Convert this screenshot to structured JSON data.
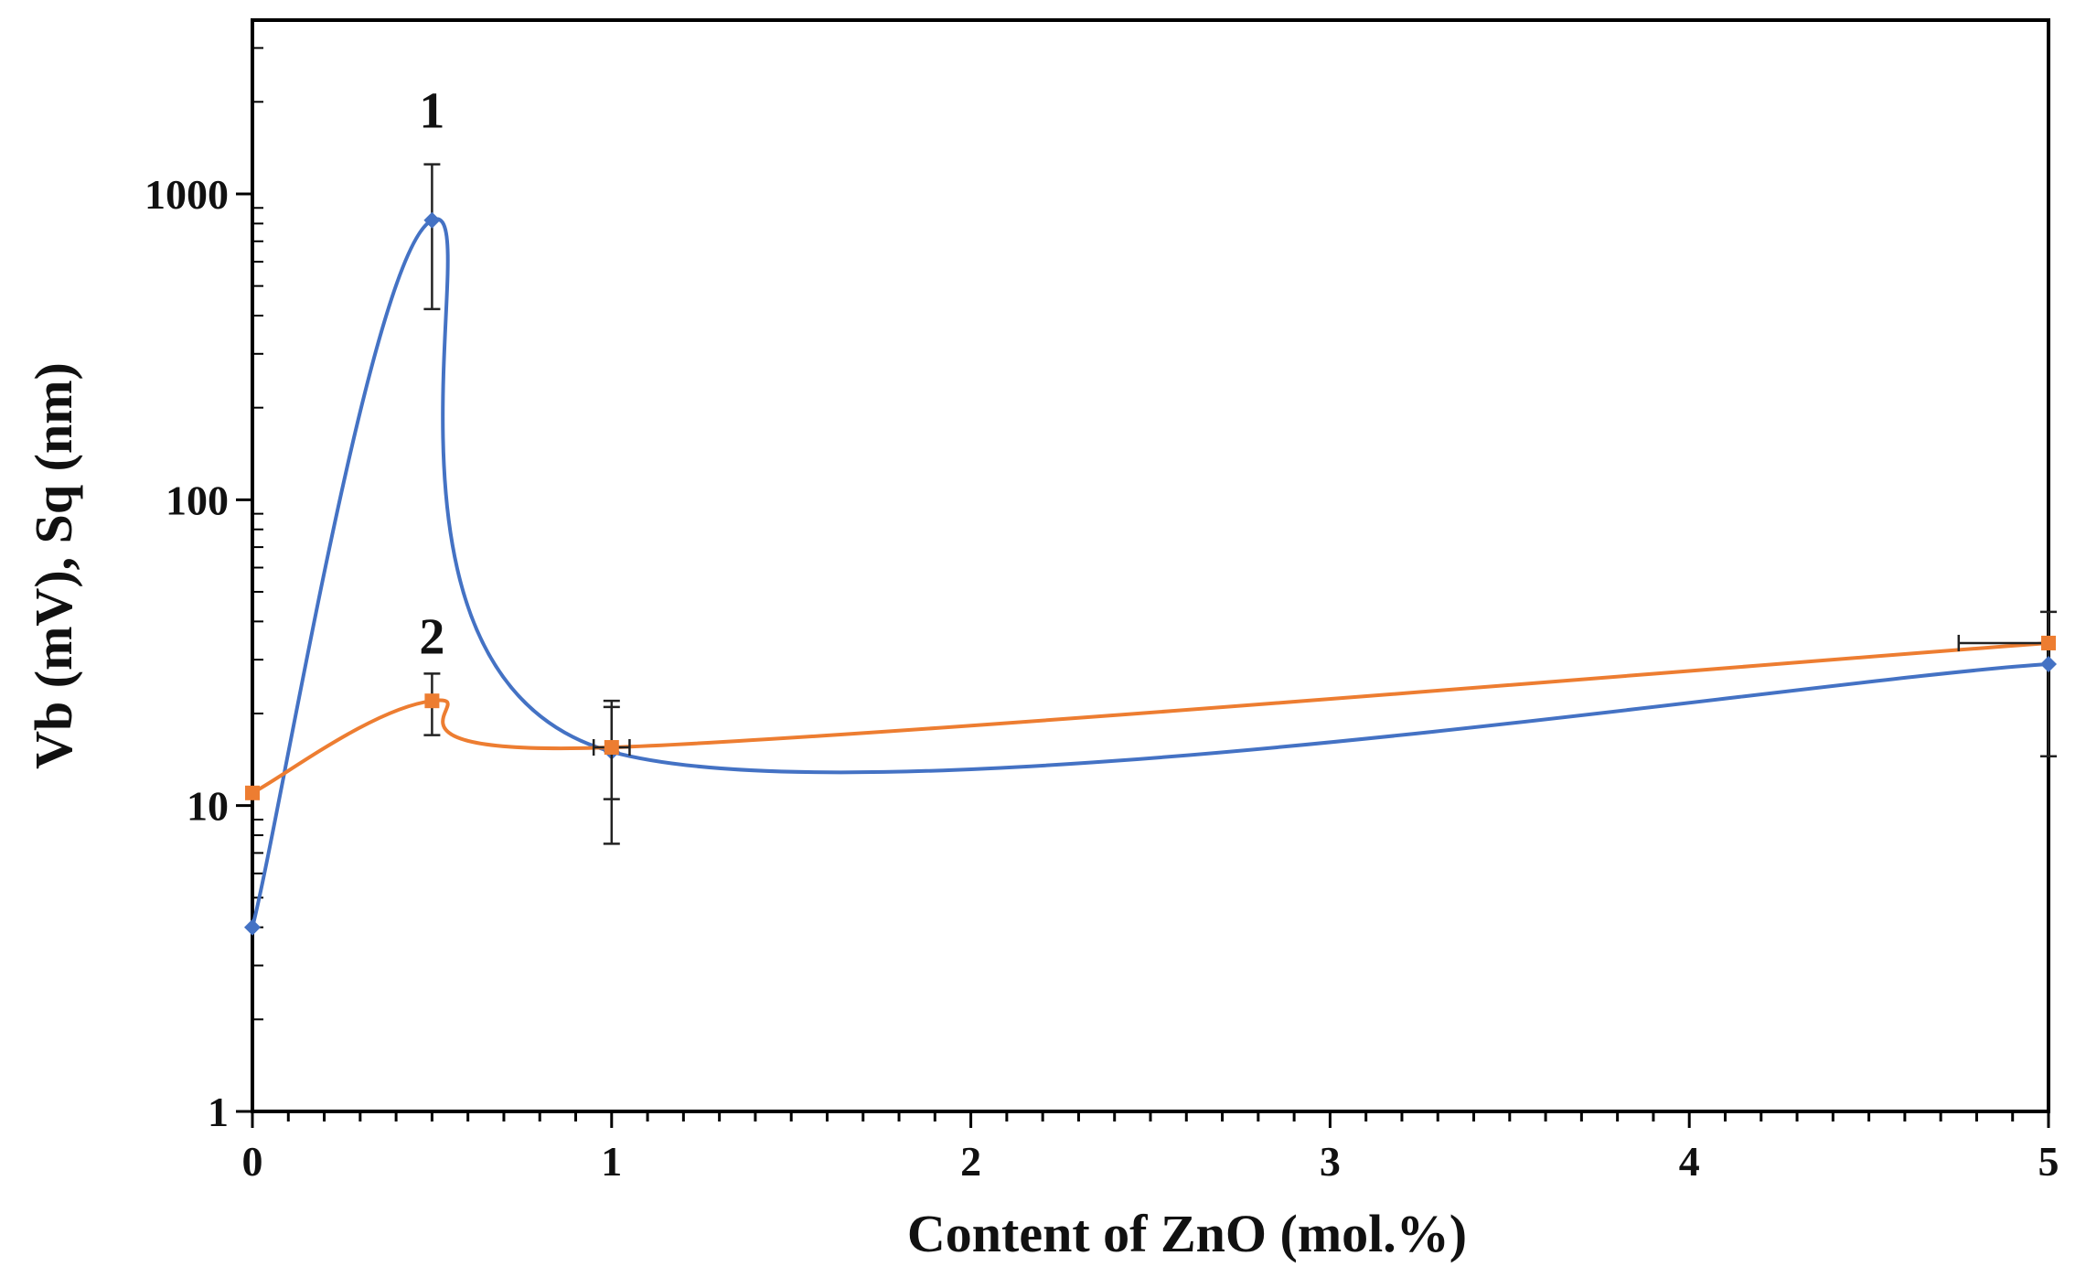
{
  "chart_data": {
    "type": "line",
    "xlabel": "Content of ZnO (mol.%)",
    "ylabel": "Vb (mV), Sq (nm)",
    "xlim": [
      0,
      5
    ],
    "ylim": [
      1,
      3700
    ],
    "y_scale": "log",
    "grid": false,
    "x_ticks": [
      "0",
      "1",
      "2",
      "3",
      "4",
      "5"
    ],
    "y_ticks": [
      "1",
      "10",
      "100",
      "1000"
    ],
    "series": [
      {
        "label": "1",
        "color": "#4472C4",
        "marker": "diamond",
        "x": [
          0,
          0.5,
          1,
          5
        ],
        "y": [
          4,
          820,
          15,
          29
        ],
        "err_y": [
          null,
          [
            420,
            1250
          ],
          [
            7.5,
            22
          ],
          [
            14.5,
            43
          ]
        ]
      },
      {
        "label": "2",
        "color": "#ED7D31",
        "marker": "square",
        "x": [
          0,
          0.5,
          1,
          5
        ],
        "y": [
          11,
          22,
          15.5,
          34
        ],
        "err_y": [
          null,
          [
            17,
            27
          ],
          [
            10.5,
            21
          ],
          null
        ],
        "err_x": [
          null,
          null,
          [
            0.95,
            1.05
          ],
          [
            4.75,
            5
          ]
        ]
      }
    ]
  }
}
